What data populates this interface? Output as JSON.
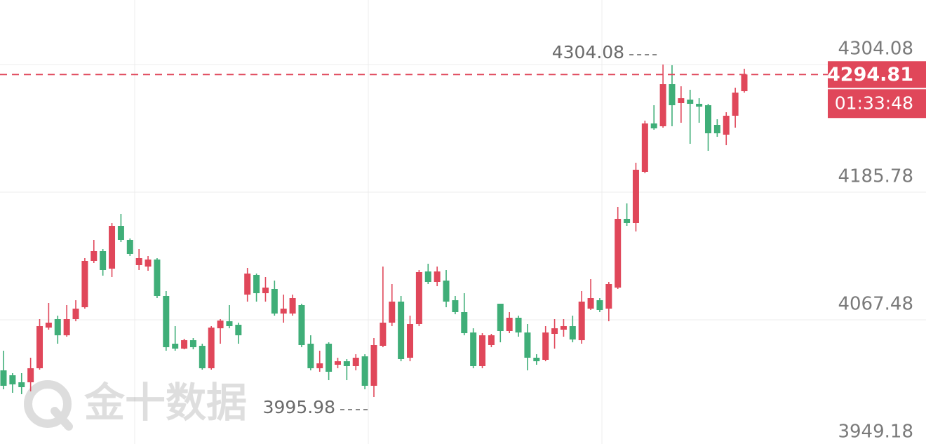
{
  "chart_data": {
    "type": "candlestick",
    "categories": [
      null,
      null,
      null,
      null,
      null,
      null,
      null,
      null,
      null,
      null,
      null,
      null,
      null,
      null,
      null,
      null,
      null,
      null,
      null,
      null,
      null,
      null,
      null,
      null,
      null,
      null,
      null,
      null,
      null,
      null,
      null,
      null,
      null,
      null,
      null,
      null,
      null,
      null,
      null,
      null,
      null,
      null,
      null,
      null,
      null,
      null,
      null,
      null,
      null,
      null,
      null,
      null,
      null,
      null,
      null,
      null,
      null,
      null,
      null,
      null,
      null,
      null,
      null,
      null,
      null,
      null,
      null,
      null,
      null,
      null,
      null,
      null,
      null,
      null,
      null,
      null,
      null,
      null,
      null,
      null,
      null,
      null,
      null
    ],
    "open": [
      4020.68,
      4016.13,
      4009.63,
      4009.63,
      4022.63,
      4060.33,
      4068.13,
      4053.18,
      4068.13,
      4079.18,
      4122.08,
      4131.18,
      4114.93,
      4154.58,
      4141.58,
      4118.18,
      4116.88,
      4123.38,
      4089.58,
      4045.38,
      4040.83,
      4048.63,
      4043.43,
      4022.63,
      4059.68,
      4066.18,
      4062.93,
      4090.88,
      4109.08,
      4092.18,
      4096.08,
      4073.33,
      4073.33,
      4081.13,
      4045.38,
      4022.63,
      4045.38,
      4025.88,
      4029.13,
      4024.58,
      4033.68,
      4006.38,
      4043.43,
      4064.88,
      4084.38,
      4032.38,
      4063.58,
      4112.33,
      4102.58,
      4103.88,
      4085.68,
      4074.63,
      4055.78,
      4024.58,
      4044.08,
      4082.43,
      4057.08,
      4069.43,
      4055.78,
      4032.38,
      4030.43,
      4054.48,
      4058.38,
      4061.63,
      4048.63,
      4077.88,
      4085.68,
      4077.88,
      4097.38,
      4161.08,
      4157.18,
      4204.63,
      4249.48,
      4246.88,
      4285.88,
      4268.33,
      4271.58,
      4267.68,
      4266.38,
      4248.18,
      4239.08,
      4256.63,
      4279.38
    ],
    "high": [
      4038.88,
      4018.08,
      4018.08,
      4032.38,
      4068.13,
      4083.08,
      4071.38,
      4081.13,
      4085.68,
      4124.68,
      4141.58,
      4133.13,
      4157.18,
      4165.63,
      4142.88,
      4133.13,
      4126.63,
      4124.68,
      4094.13,
      4061.63,
      4049.93,
      4050.58,
      4045.38,
      4061.63,
      4068.13,
      4081.13,
      4064.88,
      4115.58,
      4110.38,
      4107.13,
      4103.88,
      4090.88,
      4090.88,
      4082.43,
      4053.18,
      4038.88,
      4046.68,
      4032.38,
      4031.08,
      4035.63,
      4035.63,
      4050.58,
      4116.88,
      4100.63,
      4089.58,
      4071.38,
      4113.63,
      4119.48,
      4116.88,
      4113.63,
      4089.58,
      4092.18,
      4059.68,
      4055.13,
      4054.48,
      4082.43,
      4074.63,
      4071.38,
      4063.58,
      4035.63,
      4061.63,
      4068.13,
      4068.13,
      4071.38,
      4094.13,
      4105.18,
      4087.63,
      4102.58,
      4172.13,
      4175.38,
      4213.08,
      4252.08,
      4266.38,
      4304.08,
      4303.43,
      4283.93,
      4280.68,
      4272.88,
      4267.68,
      4253.38,
      4259.88,
      4282.63,
      4300.18
    ],
    "low": [
      4003.13,
      3999.88,
      3998.58,
      4001.18,
      4021.33,
      4058.38,
      4045.38,
      4051.88,
      4066.18,
      4077.88,
      4120.13,
      4108.43,
      4107.13,
      4139.63,
      4126.63,
      4113.63,
      4112.98,
      4087.63,
      4038.88,
      4038.88,
      4040.18,
      4040.18,
      4021.33,
      4021.33,
      4045.38,
      4059.68,
      4045.38,
      4084.38,
      4084.38,
      4084.38,
      4071.38,
      4064.88,
      4071.38,
      4042.13,
      4020.68,
      4019.38,
      4011.58,
      4022.63,
      4011.58,
      4020.68,
      4003.13,
      3995.98,
      4042.13,
      4061.63,
      4029.13,
      4029.13,
      4061.63,
      4100.63,
      4098.68,
      4079.18,
      4072.68,
      4053.18,
      4022.63,
      4022.63,
      4042.13,
      4046.68,
      4055.13,
      4051.88,
      4020.68,
      4025.88,
      4029.13,
      4040.83,
      4051.88,
      4046.68,
      4045.38,
      4076.58,
      4074.63,
      4066.18,
      4096.08,
      4154.58,
      4149.38,
      4203.33,
      4243.63,
      4245.58,
      4246.88,
      4250.13,
      4230.63,
      4250.13,
      4224.13,
      4237.13,
      4229.33,
      4245.58,
      4278.08
    ],
    "close": [
      4006.38,
      4007.68,
      4005.08,
      4022.63,
      4061.63,
      4064.88,
      4053.18,
      4068.13,
      4077.88,
      4122.08,
      4131.18,
      4113.63,
      4154.58,
      4141.58,
      4128.58,
      4124.68,
      4123.38,
      4089.58,
      4042.13,
      4040.83,
      4048.63,
      4042.13,
      4022.63,
      4060.33,
      4066.83,
      4061.63,
      4053.18,
      4110.38,
      4092.18,
      4097.38,
      4073.33,
      4077.88,
      4087.63,
      4044.08,
      4022.63,
      4027.18,
      4019.38,
      4029.13,
      4024.58,
      4032.38,
      4006.38,
      4044.08,
      4064.88,
      4084.38,
      4031.08,
      4063.58,
      4111.68,
      4102.58,
      4112.33,
      4084.38,
      4074.63,
      4055.13,
      4024.58,
      4053.18,
      4053.18,
      4057.08,
      4069.43,
      4055.78,
      4032.38,
      4029.13,
      4055.78,
      4059.68,
      4061.63,
      4049.28,
      4084.38,
      4087.63,
      4076.58,
      4100.63,
      4161.08,
      4157.18,
      4206.58,
      4249.48,
      4244.93,
      4285.88,
      4266.38,
      4272.88,
      4267.68,
      4265.08,
      4240.38,
      4240.38,
      4256.63,
      4278.08,
      4294.81
    ],
    "up_color": "#e0475a",
    "down_color": "#3fae78",
    "ylim": [
      3952.43,
      4363.88
    ],
    "yticks": [
      4304.08,
      4185.78,
      4067.48,
      3949.18
    ],
    "grid": true,
    "countdown": "01:33:48",
    "watermark": "金十数据"
  }
}
